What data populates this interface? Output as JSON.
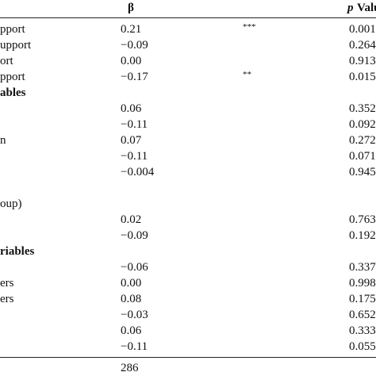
{
  "table": {
    "header": {
      "beta": "β",
      "p_symbol": "p",
      "p_label": "Value"
    },
    "rows": [
      {
        "label": "pport",
        "beta": "0.21",
        "sig": "***",
        "p": "0.001"
      },
      {
        "label": "upport",
        "beta": "−0.09",
        "p": "0.264"
      },
      {
        "label": "ort",
        "beta": "0.00",
        "p": "0.913"
      },
      {
        "label": "pport",
        "beta": "−0.17",
        "sig": "**",
        "p": "0.015"
      },
      {
        "label": "ables",
        "bold": true
      },
      {
        "beta": "0.06",
        "p": "0.352"
      },
      {
        "beta": "−0.11",
        "p": "0.092"
      },
      {
        "label": "n",
        "beta": "0.07",
        "p": "0.272"
      },
      {
        "beta": "−0.11",
        "p": "0.071"
      },
      {
        "beta": "−0.004",
        "p": "0.945"
      },
      {},
      {
        "label": "oup)"
      },
      {
        "beta": "0.02",
        "p": "0.763"
      },
      {
        "beta": "−0.09",
        "p": "0.192"
      },
      {
        "label": "riables",
        "bold": true
      },
      {
        "beta": "−0.06",
        "p": "0.337"
      },
      {
        "label": "ers",
        "beta": "0.00",
        "p": "0.998"
      },
      {
        "label": "ers",
        "beta": "0.08",
        "p": "0.175"
      },
      {
        "beta": "−0.03",
        "p": "0.652"
      },
      {
        "beta": "0.06",
        "p": "0.333"
      },
      {
        "beta": "−0.11",
        "p": "0.055"
      }
    ],
    "footer": {
      "beta": "286"
    }
  }
}
